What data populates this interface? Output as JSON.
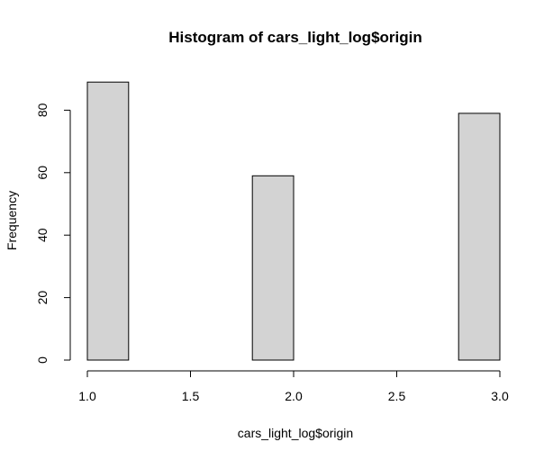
{
  "chart_data": {
    "type": "bar",
    "title": "Histogram of cars_light_log$origin",
    "xlabel": "cars_light_log$origin",
    "ylabel": "Frequency",
    "xlim": [
      1.0,
      3.0
    ],
    "ylim": [
      0,
      89
    ],
    "bins": [
      {
        "x0": 1.0,
        "x1": 1.2,
        "count": 89
      },
      {
        "x0": 1.2,
        "x1": 1.4,
        "count": 0
      },
      {
        "x0": 1.4,
        "x1": 1.6,
        "count": 0
      },
      {
        "x0": 1.6,
        "x1": 1.8,
        "count": 0
      },
      {
        "x0": 1.8,
        "x1": 2.0,
        "count": 59
      },
      {
        "x0": 2.0,
        "x1": 2.2,
        "count": 0
      },
      {
        "x0": 2.2,
        "x1": 2.4,
        "count": 0
      },
      {
        "x0": 2.4,
        "x1": 2.6,
        "count": 0
      },
      {
        "x0": 2.6,
        "x1": 2.8,
        "count": 0
      },
      {
        "x0": 2.8,
        "x1": 3.0,
        "count": 79
      }
    ],
    "x_ticks": [
      "1.0",
      "1.5",
      "2.0",
      "2.5",
      "3.0"
    ],
    "y_ticks": [
      "0",
      "20",
      "40",
      "60",
      "80"
    ],
    "bar_color": "#d3d3d3",
    "border_color": "#000000",
    "grid": false,
    "legend": "none"
  }
}
